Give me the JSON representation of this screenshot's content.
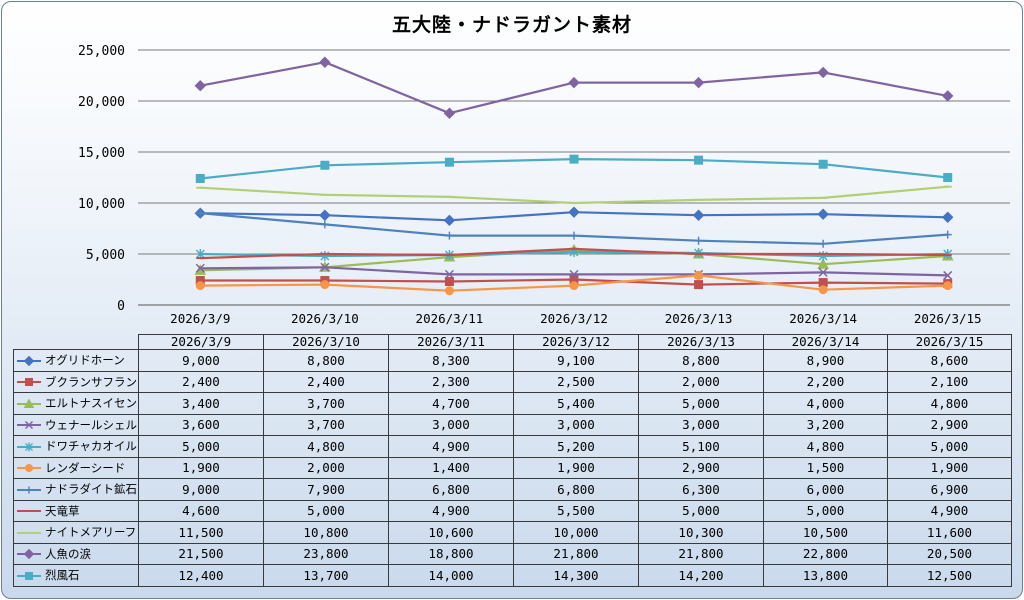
{
  "chart_data": {
    "type": "line",
    "title": "五大陸・ナドラガント素材",
    "xlabel": "",
    "ylabel": "",
    "ylim": [
      0,
      25000
    ],
    "y_ticks": [
      "0",
      "5,000",
      "10,000",
      "15,000",
      "20,000",
      "25,000"
    ],
    "grid": "horizontal",
    "categories": [
      "2026/3/9",
      "2026/3/10",
      "2026/3/11",
      "2026/3/12",
      "2026/3/13",
      "2026/3/14",
      "2026/3/15"
    ],
    "series": [
      {
        "name": "オグリドホーン",
        "color": "#4472c4",
        "marker": "diamond",
        "values": [
          9000,
          8800,
          8300,
          9100,
          8800,
          8900,
          8600
        ],
        "labels": [
          "9,000",
          "8,800",
          "8,300",
          "9,100",
          "8,800",
          "8,900",
          "8,600"
        ]
      },
      {
        "name": "ブクランサフラン",
        "color": "#c0504d",
        "marker": "square",
        "values": [
          2400,
          2400,
          2300,
          2500,
          2000,
          2200,
          2100
        ],
        "labels": [
          "2,400",
          "2,400",
          "2,300",
          "2,500",
          "2,000",
          "2,200",
          "2,100"
        ]
      },
      {
        "name": "エルトナスイセン",
        "color": "#9bbb59",
        "marker": "triangle",
        "values": [
          3400,
          3700,
          4700,
          5400,
          5000,
          4000,
          4800
        ],
        "labels": [
          "3,400",
          "3,700",
          "4,700",
          "5,400",
          "5,000",
          "4,000",
          "4,800"
        ]
      },
      {
        "name": "ウェナールシェル",
        "color": "#8064a2",
        "marker": "x",
        "values": [
          3600,
          3700,
          3000,
          3000,
          3000,
          3200,
          2900
        ],
        "labels": [
          "3,600",
          "3,700",
          "3,000",
          "3,000",
          "3,000",
          "3,200",
          "2,900"
        ]
      },
      {
        "name": "ドワチャカオイル",
        "color": "#4bacc6",
        "marker": "star",
        "values": [
          5000,
          4800,
          4900,
          5200,
          5100,
          4800,
          5000
        ],
        "labels": [
          "5,000",
          "4,800",
          "4,900",
          "5,200",
          "5,100",
          "4,800",
          "5,000"
        ]
      },
      {
        "name": "レンダーシード",
        "color": "#f79646",
        "marker": "circle",
        "values": [
          1900,
          2000,
          1400,
          1900,
          2900,
          1500,
          1900
        ],
        "labels": [
          "1,900",
          "2,000",
          "1,400",
          "1,900",
          "2,900",
          "1,500",
          "1,900"
        ]
      },
      {
        "name": "ナドラダイト鉱石",
        "color": "#4f81bd",
        "marker": "plus",
        "values": [
          9000,
          7900,
          6800,
          6800,
          6300,
          6000,
          6900
        ],
        "labels": [
          "9,000",
          "7,900",
          "6,800",
          "6,800",
          "6,300",
          "6,000",
          "6,900"
        ]
      },
      {
        "name": "天竜草",
        "color": "#c0504d",
        "marker": "dash",
        "values": [
          4600,
          5000,
          4900,
          5500,
          5000,
          5000,
          4900
        ],
        "labels": [
          "4,600",
          "5,000",
          "4,900",
          "5,500",
          "5,000",
          "5,000",
          "4,900"
        ]
      },
      {
        "name": "ナイトメアリーフ",
        "color": "#b3cf74",
        "marker": "dash",
        "values": [
          11500,
          10800,
          10600,
          10000,
          10300,
          10500,
          11600
        ],
        "labels": [
          "11,500",
          "10,800",
          "10,600",
          "10,000",
          "10,300",
          "10,500",
          "11,600"
        ]
      },
      {
        "name": "人魚の涙",
        "color": "#8064a2",
        "marker": "diamond",
        "values": [
          21500,
          23800,
          18800,
          21800,
          21800,
          22800,
          20500
        ],
        "labels": [
          "21,500",
          "23,800",
          "18,800",
          "21,800",
          "21,800",
          "22,800",
          "20,500"
        ]
      },
      {
        "name": "烈風石",
        "color": "#4bacc6",
        "marker": "square",
        "values": [
          12400,
          13700,
          14000,
          14300,
          14200,
          13800,
          12500
        ],
        "labels": [
          "12,400",
          "13,700",
          "14,000",
          "14,300",
          "14,200",
          "13,800",
          "12,500"
        ]
      }
    ]
  }
}
